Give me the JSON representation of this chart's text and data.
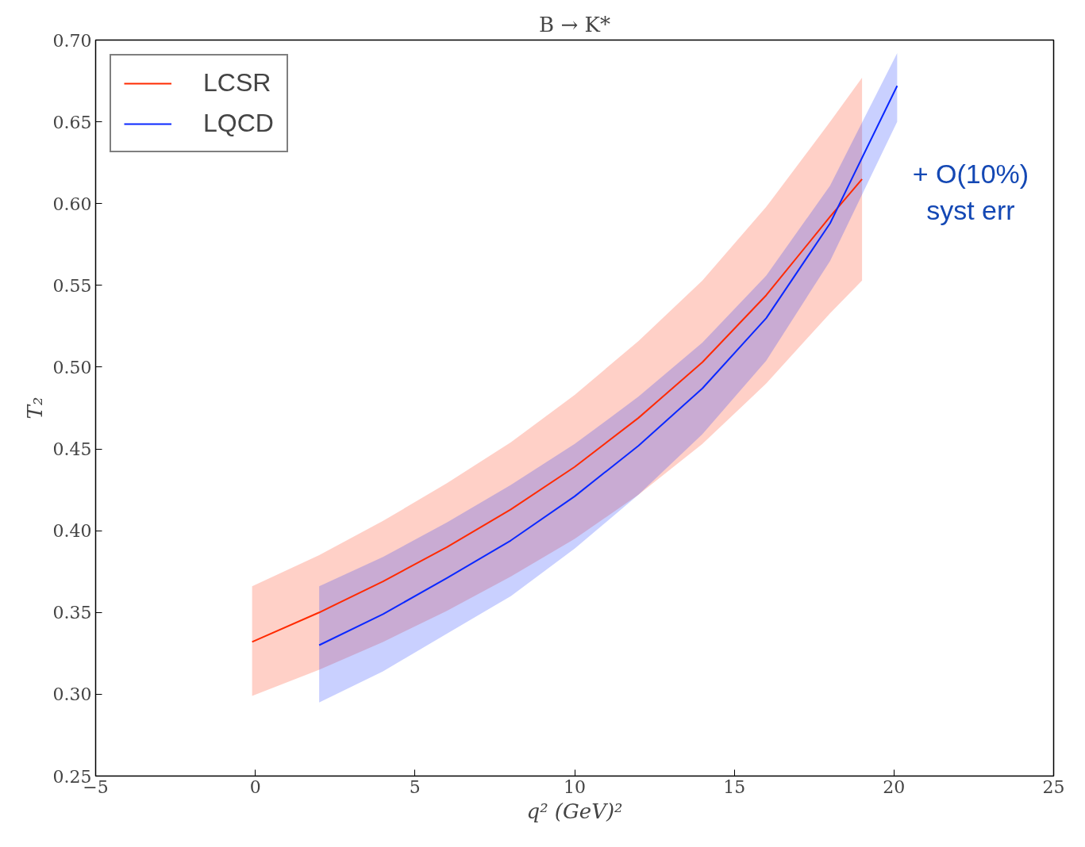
{
  "chart_data": {
    "type": "line",
    "title": "B → K*",
    "xlabel": "q² (GeV)²",
    "ylabel": "T₂",
    "xlim": [
      -5,
      25
    ],
    "ylim": [
      0.25,
      0.7
    ],
    "xticks": [
      {
        "value": -5,
        "label": "−5"
      },
      0,
      5,
      10,
      15,
      20,
      25
    ],
    "yticks": [
      0.25,
      {
        "value": 0.3,
        "label": "0.30"
      },
      0.35,
      {
        "value": 0.4,
        "label": "0.40"
      },
      0.45,
      {
        "value": 0.5,
        "label": "0.50"
      },
      0.55,
      {
        "value": 0.6,
        "label": "0.60"
      },
      0.65,
      {
        "value": 0.7,
        "label": "0.70"
      }
    ],
    "series": [
      {
        "name": "LCSR",
        "color": "#ff2a00",
        "x": [
          -0.1,
          2,
          4,
          6,
          8,
          10,
          12,
          14,
          16,
          18,
          19
        ],
        "values": [
          0.332,
          0.35,
          0.369,
          0.39,
          0.413,
          0.439,
          0.469,
          0.503,
          0.544,
          0.592,
          0.615
        ],
        "lower": [
          0.299,
          0.315,
          0.332,
          0.351,
          0.372,
          0.395,
          0.422,
          0.453,
          0.49,
          0.533,
          0.553
        ],
        "upper": [
          0.366,
          0.385,
          0.406,
          0.429,
          0.454,
          0.483,
          0.516,
          0.553,
          0.598,
          0.65,
          0.677
        ]
      },
      {
        "name": "LQCD",
        "color": "#0a28ff",
        "x": [
          2,
          4,
          6,
          8,
          10,
          12,
          14,
          16,
          18,
          20.1
        ],
        "values": [
          0.33,
          0.349,
          0.371,
          0.394,
          0.421,
          0.452,
          0.487,
          0.53,
          0.588,
          0.672
        ],
        "lower": [
          0.295,
          0.314,
          0.337,
          0.36,
          0.389,
          0.422,
          0.459,
          0.504,
          0.565,
          0.65
        ],
        "upper": [
          0.366,
          0.384,
          0.405,
          0.428,
          0.453,
          0.482,
          0.515,
          0.556,
          0.611,
          0.692
        ]
      }
    ],
    "annotations": [
      "+ O(10%)\nsyst err"
    ],
    "legend": "top left",
    "grid": false,
    "marker": "none",
    "line_style": "solid"
  }
}
